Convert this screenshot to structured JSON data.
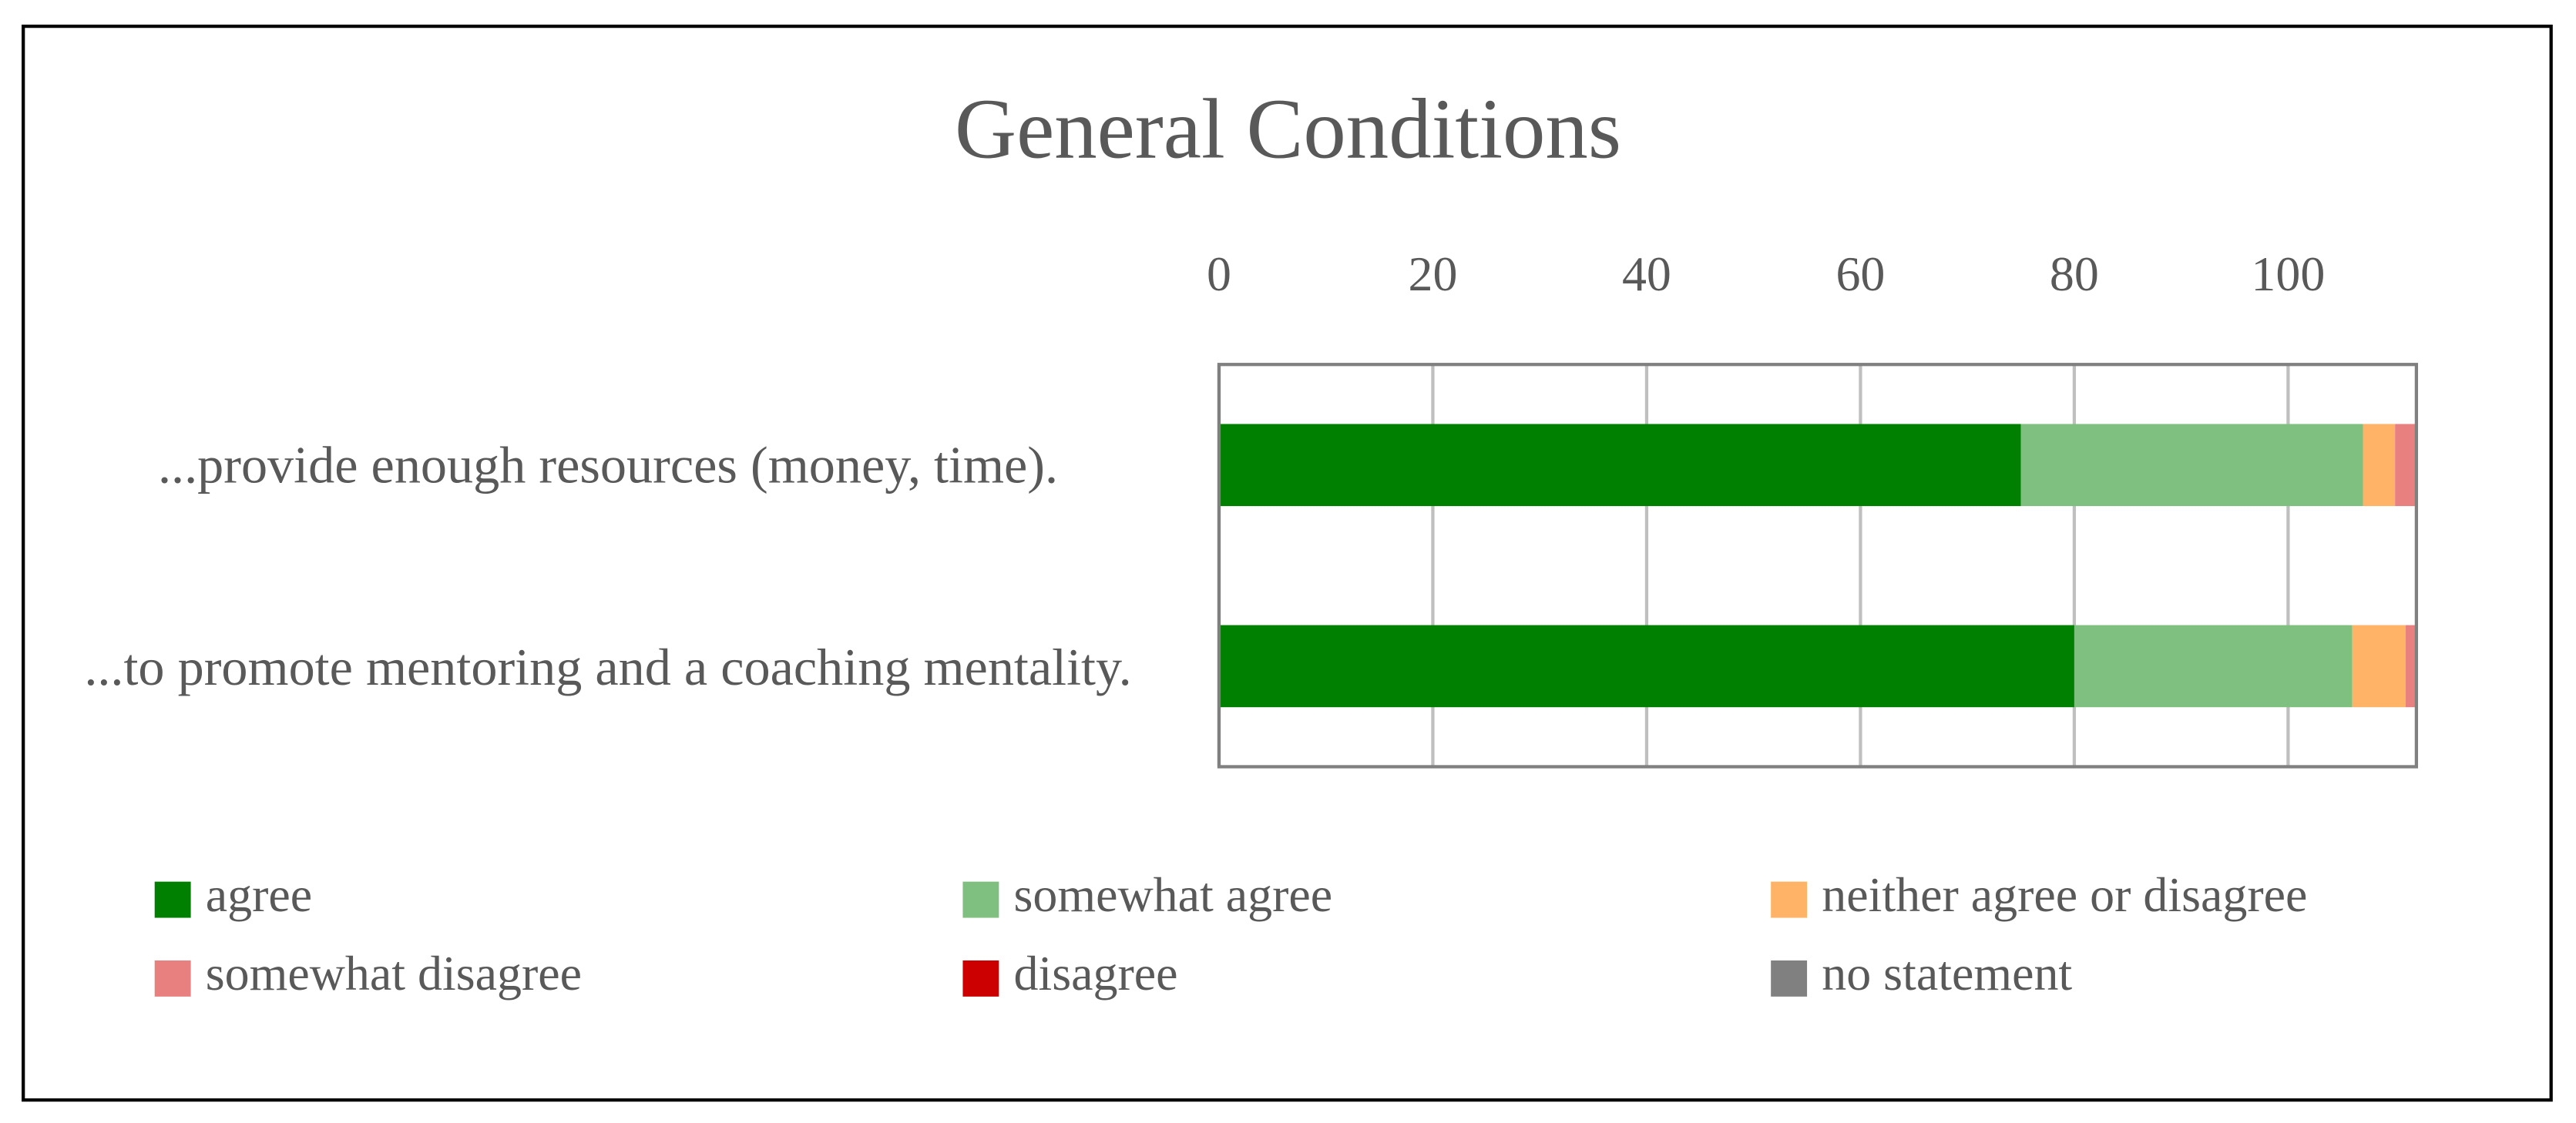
{
  "chart_data": {
    "type": "stacked-bar-horizontal",
    "title": "General Conditions",
    "categories": [
      "...provide enough resources (money, time).",
      "...to promote mentoring and a coaching mentality."
    ],
    "series": [
      {
        "name": "agree",
        "color": "#008000",
        "values": [
          75,
          80
        ]
      },
      {
        "name": "somewhat agree",
        "color": "#7fbf7f",
        "values": [
          32,
          26
        ]
      },
      {
        "name": "neither agree or disagree",
        "color": "#ffb366",
        "values": [
          3,
          5
        ]
      },
      {
        "name": "somewhat disagree",
        "color": "#e88080",
        "values": [
          2,
          1
        ]
      },
      {
        "name": "disagree",
        "color": "#cc0000",
        "values": [
          0,
          0
        ]
      },
      {
        "name": "no statement",
        "color": "#808080",
        "values": [
          0,
          0
        ]
      }
    ],
    "xlim": [
      0,
      112
    ],
    "xticks": [
      0,
      20,
      40,
      60,
      80,
      100
    ],
    "grid": true,
    "legend": "bottom"
  }
}
